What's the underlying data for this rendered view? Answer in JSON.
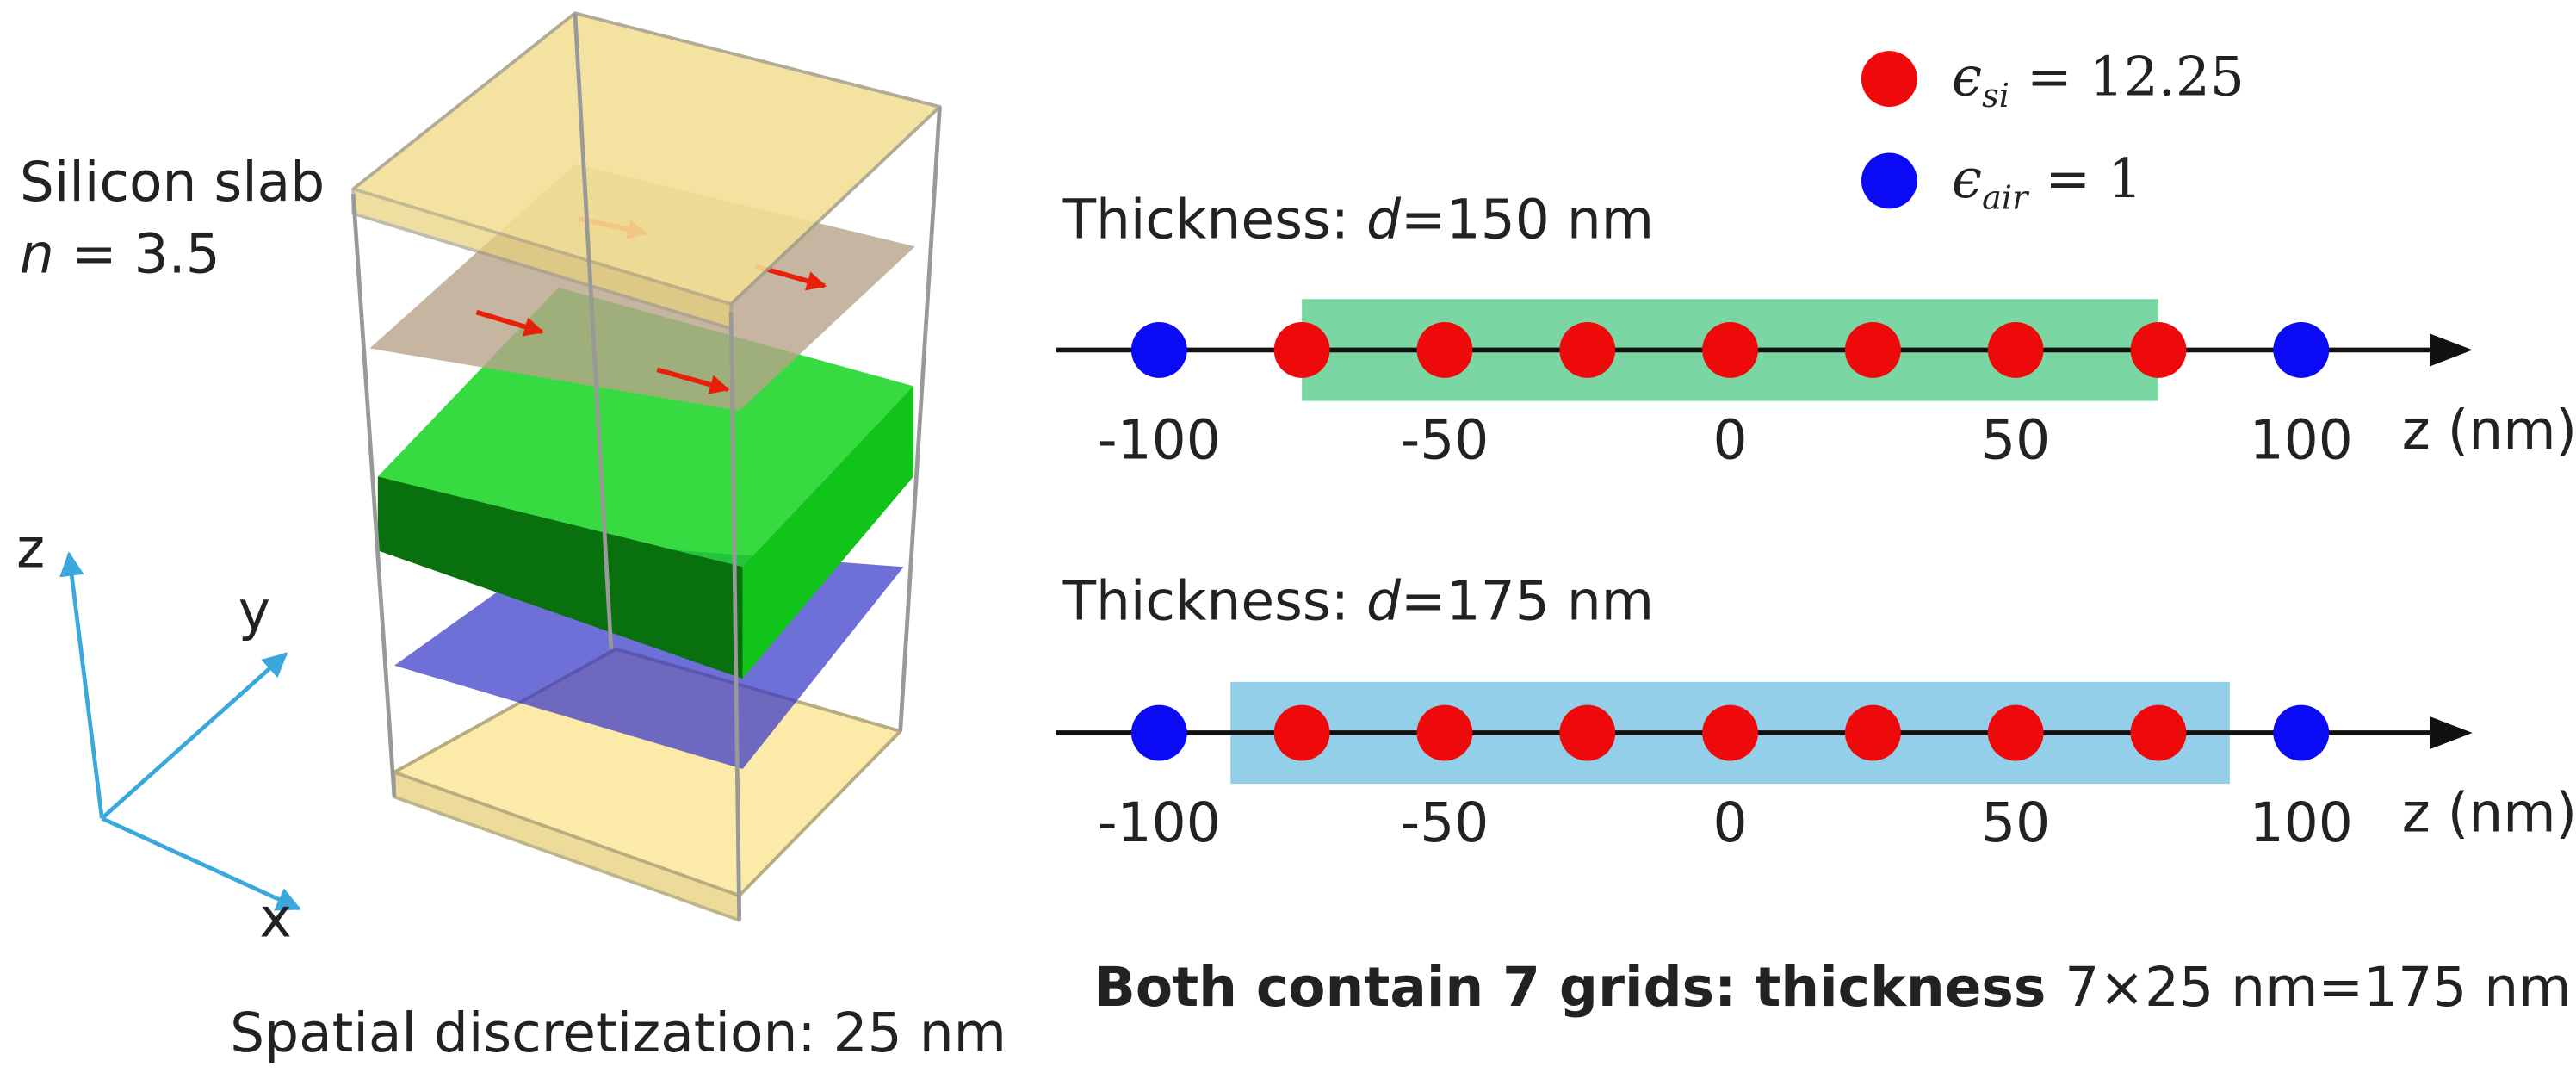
{
  "slab": {
    "label": "Silicon slab",
    "index_symbol": "n",
    "index_value": "= 3.5"
  },
  "axes3d": {
    "z": "z",
    "y": "y",
    "x": "x"
  },
  "caption_left": "Spatial discretization: 25 nm",
  "legend": [
    {
      "symbol": "ϵ",
      "sub": "si",
      "text": " = 12.25",
      "color": "#ee0a0a"
    },
    {
      "symbol": "ϵ",
      "sub": "air",
      "text": " = 1",
      "color": "#0a0af5"
    }
  ],
  "grid_z": [
    -100,
    -75,
    -50,
    -25,
    0,
    25,
    50,
    75,
    100
  ],
  "xlim": [
    -118,
    130
  ],
  "panels": [
    {
      "title_prefix": "Thickness: ",
      "title_var": "d",
      "title_suffix": "=150 nm",
      "slab": [
        -75,
        75
      ],
      "color": "#7ad6a2",
      "ticks": [
        -100,
        -50,
        0,
        50,
        100
      ],
      "axis_label": "z (nm)"
    },
    {
      "title_prefix": "Thickness: ",
      "title_var": "d",
      "title_suffix": "=175 nm",
      "slab": [
        -87.5,
        87.5
      ],
      "color": "#93cfe9",
      "ticks": [
        -100,
        -50,
        0,
        50,
        100
      ],
      "axis_label": "z (nm)"
    }
  ],
  "caption_right_bold": "Both contain 7 grids: thickness ",
  "caption_right_rest": "7×25 nm=175 nm"
}
